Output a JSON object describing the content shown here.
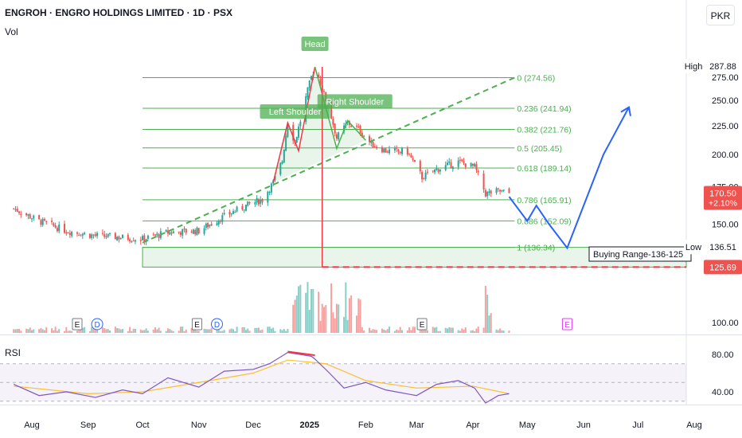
{
  "header": {
    "title": "ENGROH · ENGRO HOLDINGS LIMITED · 1D · PSX",
    "volume_label": "Vol",
    "currency": "PKR"
  },
  "colors": {
    "up": "#26a69a",
    "down": "#ef5350",
    "fib": "#4caf50",
    "pattern": "#f23645",
    "trend": "#4caf50",
    "projection": "#2962ff",
    "rsi": "#7e57c2",
    "rsi_ma": "#fbc02d",
    "earnings": "#787b86",
    "dividends": "#2962ff"
  },
  "chart_data": {
    "type": "candlestick",
    "symbol": "ENGROH",
    "timeframe": "1D",
    "y_scale": "log",
    "x_axis": [
      "Aug",
      "Sep",
      "Oct",
      "Nov",
      "Dec",
      "2025",
      "Feb",
      "Mar",
      "Apr",
      "May",
      "Jun",
      "Jul",
      "Aug"
    ],
    "y_axis_ticks": [
      "275.00",
      "250.00",
      "225.00",
      "200.00",
      "175.00",
      "150.00",
      "100.00"
    ],
    "price_markers": [
      {
        "label": "High",
        "value": "287.88"
      },
      {
        "label": "",
        "value": "170.50",
        "change": "+2.10%"
      },
      {
        "label": "Low",
        "value": "136.51"
      },
      {
        "label": "",
        "value": "125.69"
      }
    ],
    "close_path": [
      {
        "d": "2024-07-22",
        "c": 160
      },
      {
        "d": "2024-08-05",
        "c": 152
      },
      {
        "d": "2024-08-20",
        "c": 146
      },
      {
        "d": "2024-09-05",
        "c": 143
      },
      {
        "d": "2024-09-20",
        "c": 142
      },
      {
        "d": "2024-10-01",
        "c": 141
      },
      {
        "d": "2024-10-15",
        "c": 145
      },
      {
        "d": "2024-11-01",
        "c": 146
      },
      {
        "d": "2024-11-15",
        "c": 155
      },
      {
        "d": "2024-11-29",
        "c": 163
      },
      {
        "d": "2024-12-06",
        "c": 166
      },
      {
        "d": "2024-12-12",
        "c": 178
      },
      {
        "d": "2024-12-17",
        "c": 195
      },
      {
        "d": "2024-12-20",
        "c": 228
      },
      {
        "d": "2024-12-24",
        "c": 210
      },
      {
        "d": "2024-12-27",
        "c": 230
      },
      {
        "d": "2025-01-02",
        "c": 275
      },
      {
        "d": "2025-01-04",
        "c": 287
      },
      {
        "d": "2025-01-08",
        "c": 262
      },
      {
        "d": "2025-01-12",
        "c": 240
      },
      {
        "d": "2025-01-16",
        "c": 214
      },
      {
        "d": "2025-01-22",
        "c": 228
      },
      {
        "d": "2025-01-28",
        "c": 222
      },
      {
        "d": "2025-02-04",
        "c": 209
      },
      {
        "d": "2025-02-12",
        "c": 203
      },
      {
        "d": "2025-02-24",
        "c": 202
      },
      {
        "d": "2025-03-04",
        "c": 182
      },
      {
        "d": "2025-03-12",
        "c": 188
      },
      {
        "d": "2025-03-24",
        "c": 194
      },
      {
        "d": "2025-04-02",
        "c": 190
      },
      {
        "d": "2025-04-08",
        "c": 170
      },
      {
        "d": "2025-04-15",
        "c": 172
      },
      {
        "d": "2025-04-21",
        "c": 170.5
      }
    ],
    "fibonacci": [
      {
        "label": "0 (274.56)",
        "value": 274.56
      },
      {
        "label": "0.236 (241.94)",
        "value": 241.94
      },
      {
        "label": "0.382 (221.76)",
        "value": 221.76
      },
      {
        "label": "0.5 (205.45)",
        "value": 205.45
      },
      {
        "label": "0.618 (189.14)",
        "value": 189.14
      },
      {
        "label": "0.786 (165.91)",
        "value": 165.91
      },
      {
        "label": "0.886 (152.09)",
        "value": 152.09
      },
      {
        "label": "1 (136.34)",
        "value": 136.34
      }
    ],
    "annotations": {
      "head": "Head",
      "left_shoulder": "Left Shoulder",
      "right_shoulder": "Right Shoulder",
      "buying_range": "Buying Range-136-125"
    },
    "events": [
      {
        "type": "E",
        "date": "2024-08-26"
      },
      {
        "type": "D",
        "date": "2024-09-06"
      },
      {
        "type": "E",
        "date": "2024-10-31"
      },
      {
        "type": "D",
        "date": "2024-11-11"
      },
      {
        "type": "E",
        "date": "2025-03-04"
      },
      {
        "type": "E",
        "date": "2025-05-23"
      }
    ],
    "projection": [
      {
        "d": "2025-04-21",
        "c": 168
      },
      {
        "d": "2025-05-01",
        "c": 152
      },
      {
        "d": "2025-05-06",
        "c": 162
      },
      {
        "d": "2025-05-13",
        "c": 150
      },
      {
        "d": "2025-05-23",
        "c": 136
      },
      {
        "d": "2025-06-12",
        "c": 200
      },
      {
        "d": "2025-06-26",
        "c": 243
      }
    ],
    "rsi": {
      "label": "RSI",
      "ticks": [
        "80.00",
        "40.00"
      ],
      "upper": 70,
      "lower": 30,
      "values": [
        {
          "d": "2024-07-22",
          "v": 48
        },
        {
          "d": "2024-08-05",
          "v": 36
        },
        {
          "d": "2024-08-20",
          "v": 40
        },
        {
          "d": "2024-09-05",
          "v": 34
        },
        {
          "d": "2024-09-20",
          "v": 42
        },
        {
          "d": "2024-10-01",
          "v": 38
        },
        {
          "d": "2024-10-15",
          "v": 55
        },
        {
          "d": "2024-11-01",
          "v": 45
        },
        {
          "d": "2024-11-15",
          "v": 62
        },
        {
          "d": "2024-12-01",
          "v": 64
        },
        {
          "d": "2024-12-10",
          "v": 70
        },
        {
          "d": "2024-12-20",
          "v": 82
        },
        {
          "d": "2025-01-02",
          "v": 78
        },
        {
          "d": "2025-01-04",
          "v": 75
        },
        {
          "d": "2025-01-12",
          "v": 60
        },
        {
          "d": "2025-01-20",
          "v": 44
        },
        {
          "d": "2025-02-01",
          "v": 50
        },
        {
          "d": "2025-02-12",
          "v": 42
        },
        {
          "d": "2025-03-01",
          "v": 36
        },
        {
          "d": "2025-03-12",
          "v": 48
        },
        {
          "d": "2025-03-24",
          "v": 52
        },
        {
          "d": "2025-04-02",
          "v": 44
        },
        {
          "d": "2025-04-08",
          "v": 28
        },
        {
          "d": "2025-04-15",
          "v": 36
        },
        {
          "d": "2025-04-21",
          "v": 38
        }
      ],
      "ma": [
        {
          "d": "2024-07-22",
          "v": 46
        },
        {
          "d": "2024-09-01",
          "v": 38
        },
        {
          "d": "2024-10-01",
          "v": 40
        },
        {
          "d": "2024-11-01",
          "v": 50
        },
        {
          "d": "2024-12-01",
          "v": 60
        },
        {
          "d": "2024-12-20",
          "v": 74
        },
        {
          "d": "2025-01-10",
          "v": 70
        },
        {
          "d": "2025-02-01",
          "v": 52
        },
        {
          "d": "2025-03-01",
          "v": 44
        },
        {
          "d": "2025-04-01",
          "v": 46
        },
        {
          "d": "2025-04-21",
          "v": 38
        }
      ]
    }
  }
}
